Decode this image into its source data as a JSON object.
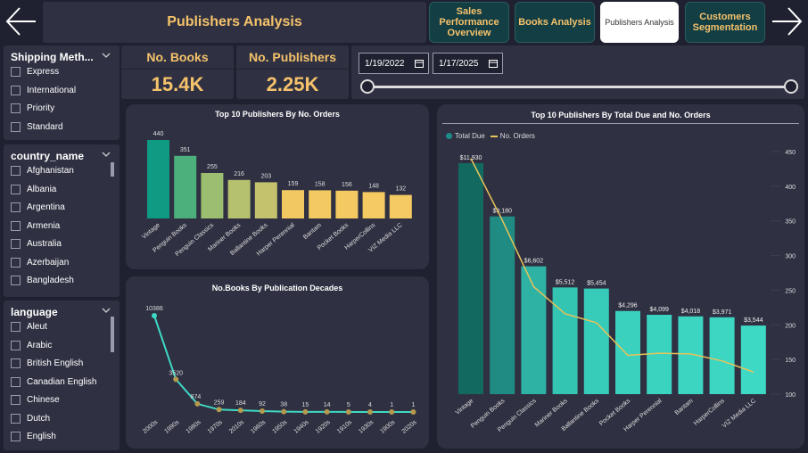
{
  "header": {
    "title": "Publishers Analysis"
  },
  "nav": {
    "back_icon": "arrow-left-icon",
    "forward_icon": "arrow-right-icon",
    "buttons": [
      {
        "label_lines": [
          "Sales",
          "Performance",
          "Overview"
        ]
      },
      {
        "label_lines": [
          "Books Analysis"
        ]
      },
      {
        "label_lines": [
          "Publishers Analysis"
        ]
      },
      {
        "label_lines": [
          "Customers",
          "Segmentation"
        ]
      }
    ]
  },
  "kpis": [
    {
      "title": "No. Books",
      "value": "15.4K"
    },
    {
      "title": "No. Publishers",
      "value": "2.25K"
    }
  ],
  "date_range": {
    "start": "1/19/2022",
    "end": "1/17/2025",
    "icon": "calendar-icon"
  },
  "slicers": {
    "shipping": {
      "title": "Shipping Meth...",
      "items": [
        "Express",
        "International",
        "Priority",
        "Standard"
      ]
    },
    "country": {
      "title": "country_name",
      "items": [
        "Afghanistan",
        "Albania",
        "Argentina",
        "Armenia",
        "Australia",
        "Azerbaijan",
        "Bangladesh"
      ]
    },
    "language": {
      "title": "language",
      "items": [
        "Aleut",
        "Arabic",
        "British English",
        "Canadian English",
        "Chinese",
        "Dutch",
        "English"
      ]
    }
  },
  "colors": {
    "gold": "#f5c26b",
    "teal_dark": "#12695f",
    "teal": "#3fd9c5",
    "line": "#e8c35a",
    "dot": "#b59a4e"
  },
  "chart_data": [
    {
      "type": "bar",
      "title": "Top 10 Publishers By No. Orders",
      "categories": [
        "Vintage",
        "Penguin Books",
        "Penguin Classics",
        "Mariner Books",
        "Ballantine Books",
        "Harper Perennial",
        "Bantam",
        "Pocket Books",
        "HarperCollins",
        "VIZ Media LLC"
      ],
      "values": [
        440,
        351,
        255,
        216,
        203,
        159,
        158,
        156,
        148,
        132
      ],
      "labels": [
        "440",
        "351",
        "255",
        "216",
        "203",
        "159",
        "158",
        "156",
        "148",
        "132"
      ],
      "colors": [
        "#0f9a83",
        "#4bb07c",
        "#9cbe70",
        "#b6c170",
        "#c4c26d",
        "#f2c862",
        "#f3c962",
        "#f4c962",
        "#f5ca62",
        "#f6ca62"
      ]
    },
    {
      "type": "line",
      "title": "No.Books By Publication Decades",
      "categories": [
        "2000s",
        "1990s",
        "1980s",
        "1970s",
        "2010s",
        "1960s",
        "1950s",
        "1940s",
        "1920s",
        "1910s",
        "1930s",
        "1900s",
        "2020s"
      ],
      "values": [
        10386,
        3520,
        874,
        259,
        184,
        92,
        38,
        15,
        14,
        5,
        4,
        1,
        1
      ],
      "labels": [
        "10386",
        "3520",
        "874",
        "259",
        "184",
        "92",
        "38",
        "15",
        "14",
        "5",
        "4",
        "1",
        "1"
      ]
    },
    {
      "type": "bar",
      "title": "Top 10 Publishers By Total Due and No. Orders",
      "legend": [
        {
          "name": "Total Due",
          "color": "#1e8a8a"
        },
        {
          "name": "No. Orders",
          "color": "#e8c35a"
        }
      ],
      "categories": [
        "Vintage",
        "Penguin Books",
        "Penguin Classics",
        "Mariner Books",
        "Ballantine Books",
        "Pocket Books",
        "Harper Perennial",
        "Bantam",
        "HarperCollins",
        "VIZ Media LLC"
      ],
      "series": [
        {
          "name": "Total Due",
          "values": [
            11930,
            9180,
            6602,
            5512,
            5454,
            4296,
            4099,
            4018,
            3971,
            3544
          ],
          "labels": [
            "$11,930",
            "$9,180",
            "$6,602",
            "$5,512",
            "$5,454",
            "$4,296",
            "$4,099",
            "$4,018",
            "$3,971",
            "$3,544"
          ]
        },
        {
          "name": "No. Orders",
          "values": [
            440,
            351,
            255,
            216,
            203,
            156,
            159,
            158,
            148,
            132
          ]
        }
      ],
      "y2_ticks": [
        "450",
        "400",
        "350",
        "300",
        "250",
        "200",
        "150",
        "100"
      ],
      "y2lim": [
        100,
        450
      ]
    }
  ]
}
